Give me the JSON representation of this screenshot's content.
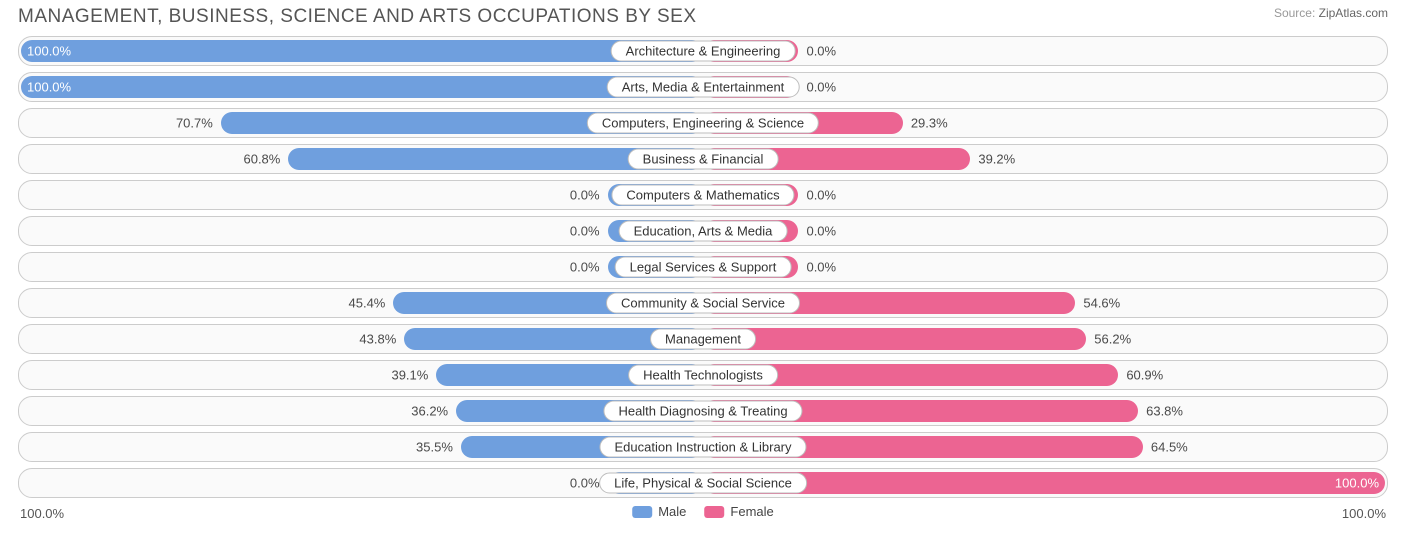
{
  "title": "MANAGEMENT, BUSINESS, SCIENCE AND ARTS OCCUPATIONS BY SEX",
  "source": {
    "label": "Source:",
    "value": "ZipAtlas.com"
  },
  "chart": {
    "type": "diverging-bar",
    "male_color": "#6f9fde",
    "female_color": "#ec6492",
    "track_bg": "#fafafa",
    "track_border": "#cccccc",
    "badge_bg": "#ffffff",
    "badge_border": "#bdbdbd",
    "label_fontsize": 13,
    "title_fontsize": 19,
    "axis": {
      "left_label": "100.0%",
      "right_label": "100.0%"
    },
    "legend": [
      {
        "label": "Male",
        "color": "#6f9fde"
      },
      {
        "label": "Female",
        "color": "#ec6492"
      }
    ],
    "min_bar_pct": 14,
    "categories": [
      {
        "name": "Architecture & Engineering",
        "male": 100.0,
        "female": 0.0,
        "male_label": "100.0%",
        "female_label": "0.0%"
      },
      {
        "name": "Arts, Media & Entertainment",
        "male": 100.0,
        "female": 0.0,
        "male_label": "100.0%",
        "female_label": "0.0%"
      },
      {
        "name": "Computers, Engineering & Science",
        "male": 70.7,
        "female": 29.3,
        "male_label": "70.7%",
        "female_label": "29.3%"
      },
      {
        "name": "Business & Financial",
        "male": 60.8,
        "female": 39.2,
        "male_label": "60.8%",
        "female_label": "39.2%"
      },
      {
        "name": "Computers & Mathematics",
        "male": 0.0,
        "female": 0.0,
        "male_label": "0.0%",
        "female_label": "0.0%"
      },
      {
        "name": "Education, Arts & Media",
        "male": 0.0,
        "female": 0.0,
        "male_label": "0.0%",
        "female_label": "0.0%"
      },
      {
        "name": "Legal Services & Support",
        "male": 0.0,
        "female": 0.0,
        "male_label": "0.0%",
        "female_label": "0.0%"
      },
      {
        "name": "Community & Social Service",
        "male": 45.4,
        "female": 54.6,
        "male_label": "45.4%",
        "female_label": "54.6%"
      },
      {
        "name": "Management",
        "male": 43.8,
        "female": 56.2,
        "male_label": "43.8%",
        "female_label": "56.2%"
      },
      {
        "name": "Health Technologists",
        "male": 39.1,
        "female": 60.9,
        "male_label": "39.1%",
        "female_label": "60.9%"
      },
      {
        "name": "Health Diagnosing & Treating",
        "male": 36.2,
        "female": 63.8,
        "male_label": "36.2%",
        "female_label": "63.8%"
      },
      {
        "name": "Education Instruction & Library",
        "male": 35.5,
        "female": 64.5,
        "male_label": "35.5%",
        "female_label": "64.5%"
      },
      {
        "name": "Life, Physical & Social Science",
        "male": 0.0,
        "female": 100.0,
        "male_label": "0.0%",
        "female_label": "100.0%"
      }
    ]
  }
}
